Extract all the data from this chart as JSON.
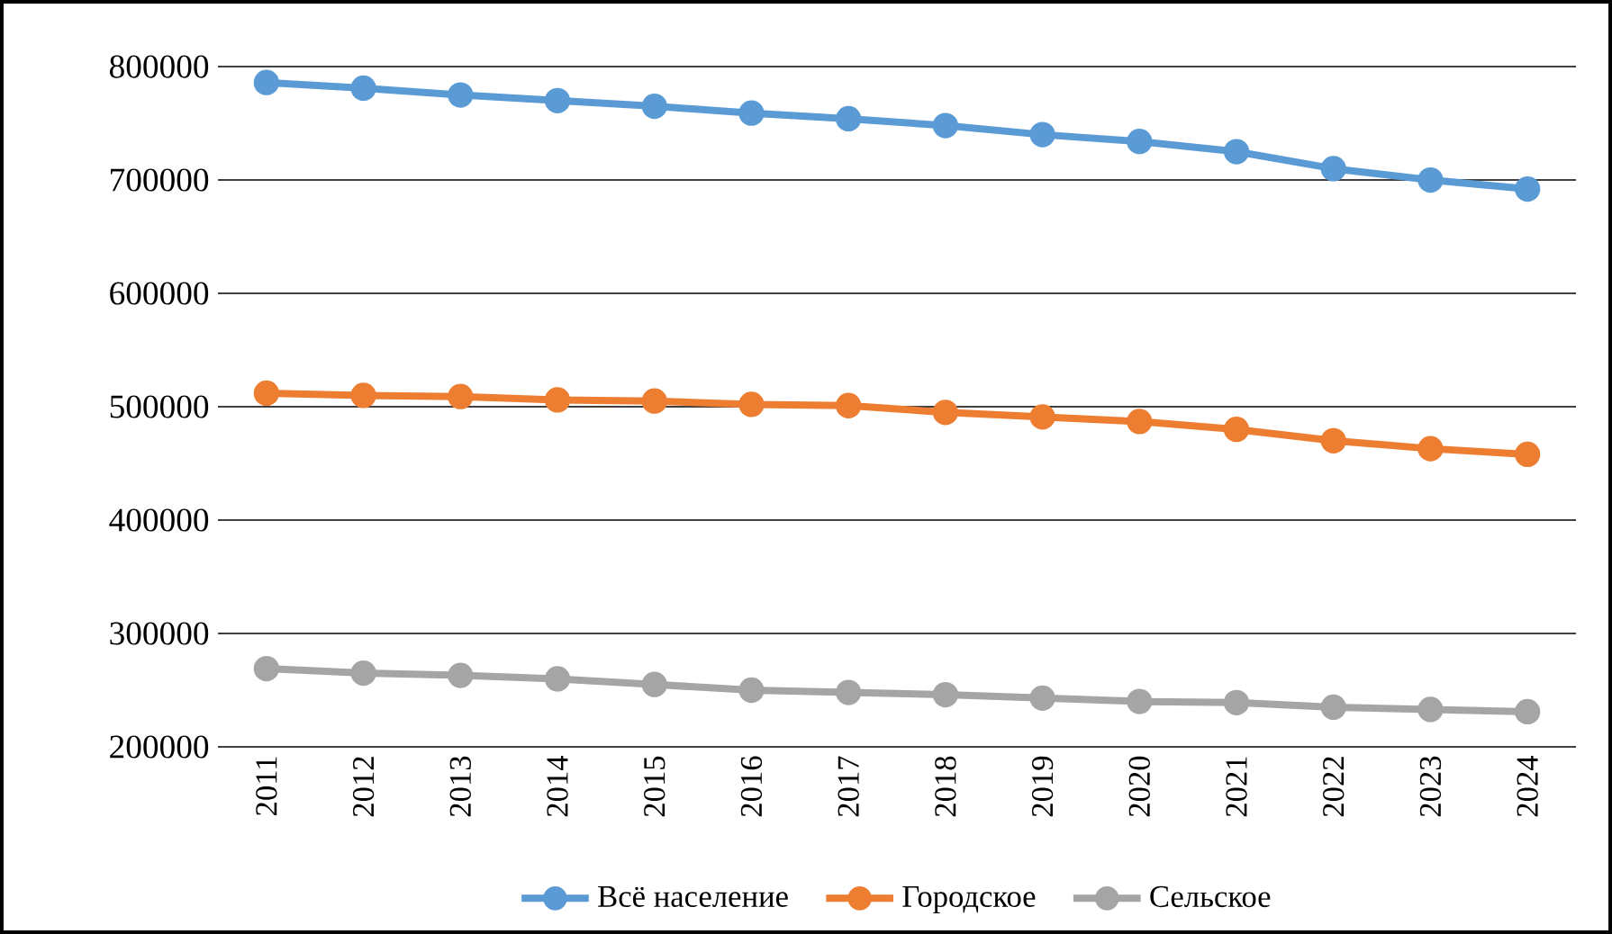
{
  "chart_data": {
    "type": "line",
    "categories": [
      "2011",
      "2012",
      "2013",
      "2014",
      "2015",
      "2016",
      "2017",
      "2018",
      "2019",
      "2020",
      "2021",
      "2022",
      "2023",
      "2024"
    ],
    "series": [
      {
        "name": "Всё население",
        "color": "#5b9bd5",
        "values": [
          786000,
          781000,
          775000,
          770000,
          765000,
          759000,
          754000,
          748000,
          740000,
          734000,
          725000,
          710000,
          700000,
          692000
        ]
      },
      {
        "name": "Городское",
        "color": "#ed7d31",
        "values": [
          512000,
          510000,
          509000,
          506000,
          505000,
          502000,
          501000,
          495000,
          491000,
          487000,
          480000,
          470000,
          463000,
          458000
        ]
      },
      {
        "name": "Сельское",
        "color": "#a5a5a5",
        "values": [
          269000,
          265000,
          263000,
          260000,
          255000,
          250000,
          248000,
          246000,
          243000,
          240000,
          239000,
          235000,
          233000,
          231000
        ]
      }
    ],
    "ylim": [
      200000,
      800000
    ],
    "yticks": [
      200000,
      300000,
      400000,
      500000,
      600000,
      700000,
      800000
    ],
    "grid": "y",
    "legend": "bottom",
    "marker": "circle",
    "line_style": "solid"
  }
}
